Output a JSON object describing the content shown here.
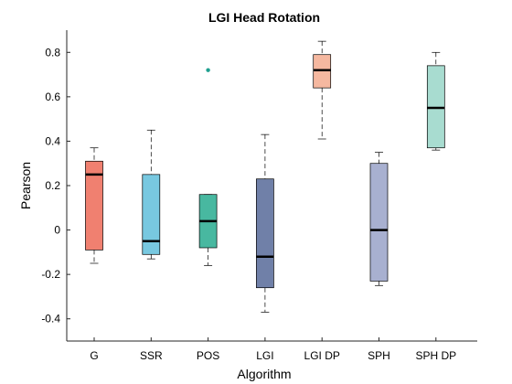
{
  "chart_data": {
    "type": "boxplot",
    "title": "LGI Head Rotation",
    "xlabel": "Algorithm",
    "ylabel": "Pearson",
    "ylim": [
      -0.5,
      0.9
    ],
    "yticks": [
      -0.4,
      -0.2,
      0,
      0.2,
      0.4,
      0.6,
      0.8
    ],
    "ytick_labels": [
      "-0.4",
      "-0.2",
      "0",
      "0.2",
      "0.4",
      "0.6",
      "0.8"
    ],
    "grid": false,
    "categories": [
      "G",
      "SSR",
      "POS",
      "LGI",
      "LGI DP",
      "SPH",
      "SPH DP"
    ],
    "series": [
      {
        "category": "G",
        "min": -0.15,
        "q1": -0.09,
        "median": 0.25,
        "q3": 0.31,
        "max": 0.37,
        "outliers": [],
        "color": "#f08070"
      },
      {
        "category": "SSR",
        "min": -0.13,
        "q1": -0.11,
        "median": -0.05,
        "q3": 0.25,
        "max": 0.45,
        "outliers": [],
        "color": "#78c8e0"
      },
      {
        "category": "POS",
        "min": -0.16,
        "q1": -0.08,
        "median": 0.04,
        "q3": 0.16,
        "max": 0.16,
        "outliers": [
          0.72
        ],
        "color": "#48b8a0"
      },
      {
        "category": "LGI",
        "min": -0.37,
        "q1": -0.26,
        "median": -0.12,
        "q3": 0.23,
        "max": 0.43,
        "outliers": [],
        "color": "#7080a8"
      },
      {
        "category": "LGI DP",
        "min": 0.41,
        "q1": 0.64,
        "median": 0.72,
        "q3": 0.79,
        "max": 0.85,
        "outliers": [],
        "color": "#f5b8a0"
      },
      {
        "category": "SPH",
        "min": -0.25,
        "q1": -0.23,
        "median": 0.0,
        "q3": 0.3,
        "max": 0.35,
        "outliers": [],
        "color": "#a8b0d0"
      },
      {
        "category": "SPH DP",
        "min": 0.36,
        "q1": 0.37,
        "median": 0.55,
        "q3": 0.74,
        "max": 0.8,
        "outliers": [],
        "color": "#a8dcd0"
      }
    ],
    "outlier_color": "#20a090"
  }
}
